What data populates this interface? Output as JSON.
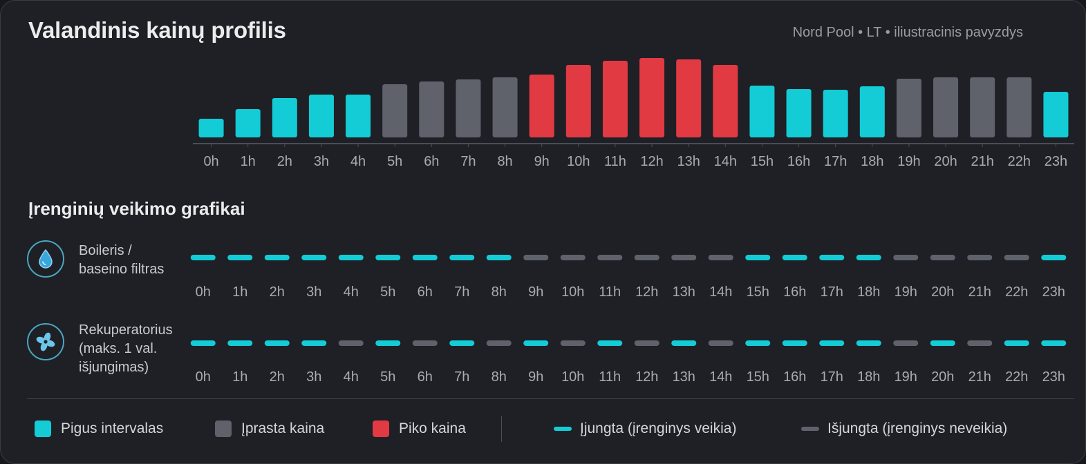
{
  "header": {
    "title": "Valandinis kainų profilis",
    "source": "Nord Pool • LT • iliustracinis pavyzdys"
  },
  "colors": {
    "cheap": "#13ccd6",
    "normal": "#5f626b",
    "peak": "#e23a42",
    "on": "#13ccd6",
    "off": "#5f626b"
  },
  "chart_data": {
    "type": "bar",
    "title": "Valandinis kainų profilis",
    "categories": [
      "0h",
      "1h",
      "2h",
      "3h",
      "4h",
      "5h",
      "6h",
      "7h",
      "8h",
      "9h",
      "10h",
      "11h",
      "12h",
      "13h",
      "14h",
      "15h",
      "16h",
      "17h",
      "18h",
      "19h",
      "20h",
      "21h",
      "22h",
      "23h"
    ],
    "values": [
      27,
      41,
      57,
      62,
      62,
      77,
      81,
      84,
      87,
      91,
      105,
      111,
      115,
      113,
      105,
      75,
      70,
      69,
      74,
      85,
      87,
      87,
      87,
      66
    ],
    "tiers": [
      "cheap",
      "cheap",
      "cheap",
      "cheap",
      "cheap",
      "normal",
      "normal",
      "normal",
      "normal",
      "peak",
      "peak",
      "peak",
      "peak",
      "peak",
      "peak",
      "cheap",
      "cheap",
      "cheap",
      "cheap",
      "normal",
      "normal",
      "normal",
      "normal",
      "cheap"
    ],
    "ylim": [
      0,
      120
    ],
    "xlabel": "",
    "ylabel": ""
  },
  "devices_section": {
    "title": "Įrenginių veikimo grafikai",
    "devices": [
      {
        "icon": "water-drop-icon",
        "label_lines": [
          "Boileris /",
          "baseino filtras"
        ],
        "states": [
          "on",
          "on",
          "on",
          "on",
          "on",
          "on",
          "on",
          "on",
          "on",
          "off",
          "off",
          "off",
          "off",
          "off",
          "off",
          "on",
          "on",
          "on",
          "on",
          "off",
          "off",
          "off",
          "off",
          "on"
        ]
      },
      {
        "icon": "fan-icon",
        "label_lines": [
          "Rekuperatorius",
          "(maks. 1 val.",
          "išjungimas)"
        ],
        "states": [
          "on",
          "on",
          "on",
          "on",
          "off",
          "on",
          "off",
          "on",
          "off",
          "on",
          "off",
          "on",
          "off",
          "on",
          "off",
          "on",
          "on",
          "on",
          "on",
          "off",
          "on",
          "off",
          "on",
          "on"
        ]
      }
    ]
  },
  "legend": {
    "cheap": "Pigus intervalas",
    "normal": "Įprasta kaina",
    "peak": "Piko kaina",
    "on": "Įjungta (įrenginys veikia)",
    "off": "Išjungta (įrenginys neveikia)"
  }
}
